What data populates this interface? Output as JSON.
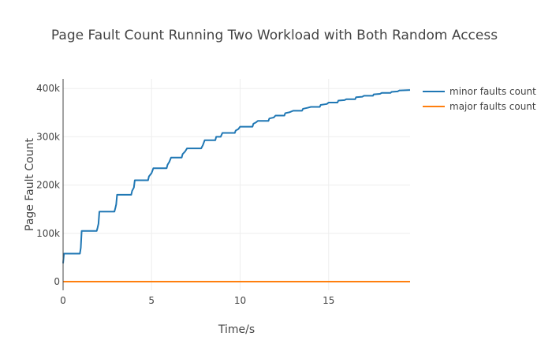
{
  "chart_data": {
    "type": "line",
    "title": "Page Fault Count Running Two Workload with Both Random Access",
    "xlabel": "Time/s",
    "ylabel": "Page Fault Count",
    "xlim": [
      0,
      19.6
    ],
    "ylim": [
      -18000,
      420000
    ],
    "x_ticks": [
      0,
      5,
      10,
      15
    ],
    "x_tick_labels": [
      "0",
      "5",
      "10",
      "15"
    ],
    "y_ticks": [
      0,
      100000,
      200000,
      300000,
      400000
    ],
    "y_tick_labels": [
      "0",
      "100k",
      "200k",
      "300k",
      "400k"
    ],
    "grid": true,
    "legend_position": "top-right",
    "series": [
      {
        "name": "minor faults count",
        "color": "#1f77b4",
        "x": [
          0,
          0.05,
          0.1,
          0.95,
          1.0,
          1.05,
          1.1,
          1.9,
          1.95,
          2.0,
          2.05,
          2.1,
          2.9,
          2.95,
          3.0,
          3.05,
          3.1,
          3.85,
          3.9,
          4.0,
          4.05,
          4.1,
          4.8,
          4.85,
          5.0,
          5.1,
          5.85,
          5.9,
          6.0,
          6.1,
          6.7,
          6.75,
          6.9,
          7.0,
          7.8,
          7.9,
          8.0,
          8.6,
          8.65,
          8.9,
          9.0,
          9.7,
          9.75,
          9.9,
          10.0,
          10.7,
          10.75,
          10.9,
          11.0,
          11.6,
          11.65,
          11.9,
          12.0,
          12.5,
          12.55,
          12.8,
          13.0,
          13.5,
          13.55,
          13.8,
          14.0,
          14.5,
          14.55,
          14.9,
          15.0,
          15.5,
          15.55,
          15.9,
          16.0,
          16.5,
          16.55,
          16.9,
          17.0,
          17.5,
          17.55,
          17.9,
          18.0,
          18.5,
          18.55,
          18.9,
          19.0,
          19.6
        ],
        "values": [
          38000,
          58000,
          58000,
          58000,
          70000,
          105000,
          105000,
          105000,
          112000,
          120000,
          145000,
          145000,
          145000,
          152000,
          160000,
          180000,
          180000,
          180000,
          188000,
          195000,
          210000,
          210000,
          210000,
          218000,
          225000,
          235000,
          235000,
          242000,
          248000,
          257000,
          257000,
          264000,
          270000,
          276000,
          276000,
          283000,
          293000,
          293000,
          300000,
          300000,
          308000,
          308000,
          313000,
          316000,
          321000,
          321000,
          327000,
          330000,
          333000,
          333000,
          338000,
          340000,
          344000,
          344000,
          349000,
          351000,
          354000,
          354000,
          358000,
          360000,
          362000,
          362000,
          366000,
          368000,
          371000,
          371000,
          375000,
          376000,
          378000,
          378000,
          382000,
          383000,
          385000,
          385000,
          388000,
          389000,
          391000,
          391000,
          393000,
          394000,
          396000,
          397000
        ]
      },
      {
        "name": "major faults count",
        "color": "#ff7f0e",
        "x": [
          0,
          19.6
        ],
        "values": [
          0,
          0
        ]
      }
    ]
  }
}
